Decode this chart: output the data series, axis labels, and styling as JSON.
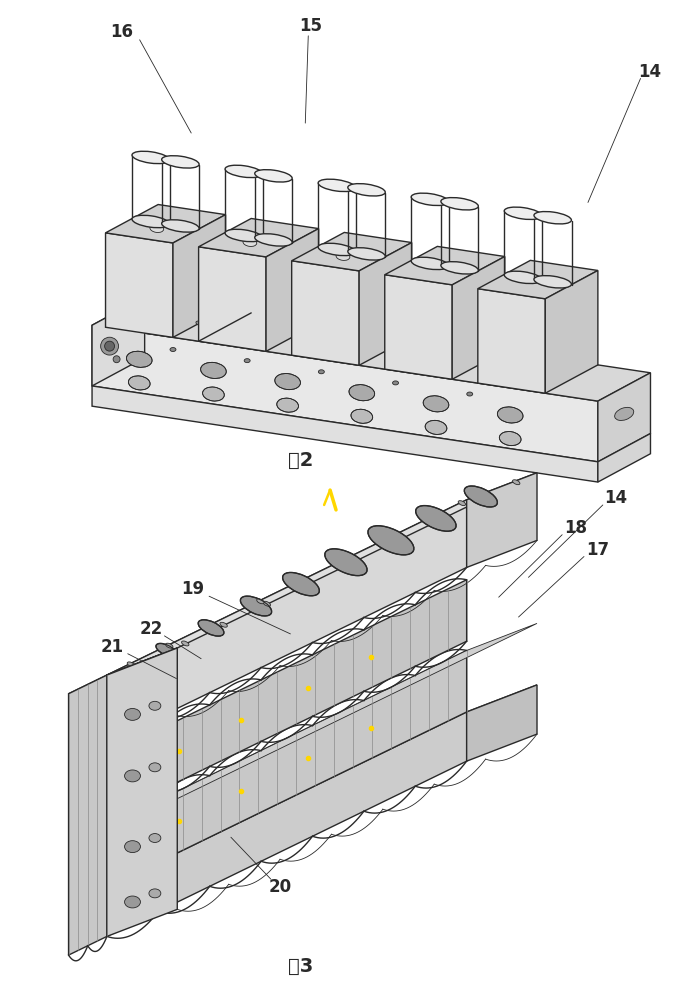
{
  "fig_width": 6.8,
  "fig_height": 10.0,
  "dpi": 100,
  "bg_color": "#ffffff",
  "line_color": "#2a2a2a",
  "line_width": 1.0,
  "thin_line": 0.6,
  "fig2_label": "图2",
  "fig3_label": "图3"
}
